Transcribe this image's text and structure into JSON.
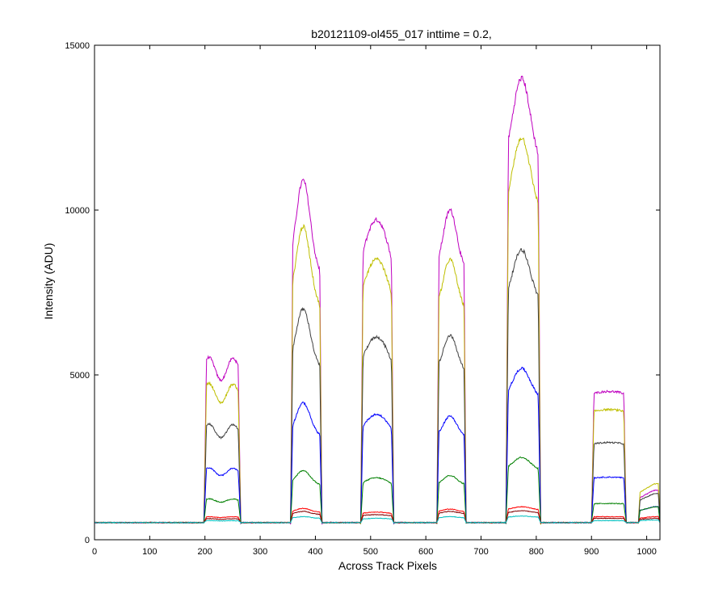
{
  "chart_data": {
    "type": "line",
    "title": "b20121109-ol455_017 inttime = 0.2,",
    "xlabel": "Across Track Pixels",
    "ylabel": "Intensity (ADU)",
    "xlim": [
      0,
      1024
    ],
    "ylim": [
      0,
      15000
    ],
    "xticks": [
      "0",
      "100",
      "200",
      "300",
      "400",
      "500",
      "600",
      "700",
      "800",
      "900",
      "1000"
    ],
    "yticks": [
      "0",
      "5000",
      "10000",
      "15000"
    ],
    "grid": false,
    "baseline": 520,
    "slits": [
      {
        "x_start": 198,
        "x_end": 265
      },
      {
        "x_start": 355,
        "x_end": 412
      },
      {
        "x_start": 482,
        "x_end": 542
      },
      {
        "x_start": 620,
        "x_end": 673
      },
      {
        "x_start": 745,
        "x_end": 808
      },
      {
        "x_start": 900,
        "x_end": 963
      },
      {
        "x_start": 985,
        "x_end": 1024
      }
    ],
    "series": [
      {
        "color": "#bf00bf",
        "peaks": [
          5600,
          10900,
          9700,
          10000,
          14000,
          4500,
          1500
        ]
      },
      {
        "color": "#bfbf00",
        "peaks": [
          4800,
          9500,
          8500,
          8500,
          12200,
          3950,
          1700
        ]
      },
      {
        "color": "#404040",
        "peaks": [
          3550,
          7000,
          6150,
          6200,
          8800,
          2950,
          1400
        ]
      },
      {
        "color": "#0000ff",
        "peaks": [
          2200,
          4150,
          3800,
          3750,
          5200,
          1900,
          1000
        ]
      },
      {
        "color": "#008000",
        "peaks": [
          1250,
          2100,
          1880,
          1950,
          2500,
          1100,
          1000
        ]
      },
      {
        "color": "#ff0000",
        "peaks": [
          700,
          950,
          840,
          930,
          1000,
          700,
          700
        ]
      },
      {
        "color": "#800000",
        "peaks": [
          640,
          860,
          760,
          860,
          880,
          650,
          650
        ]
      },
      {
        "color": "#00bfbf",
        "peaks": [
          580,
          700,
          650,
          700,
          720,
          580,
          600
        ]
      }
    ]
  }
}
